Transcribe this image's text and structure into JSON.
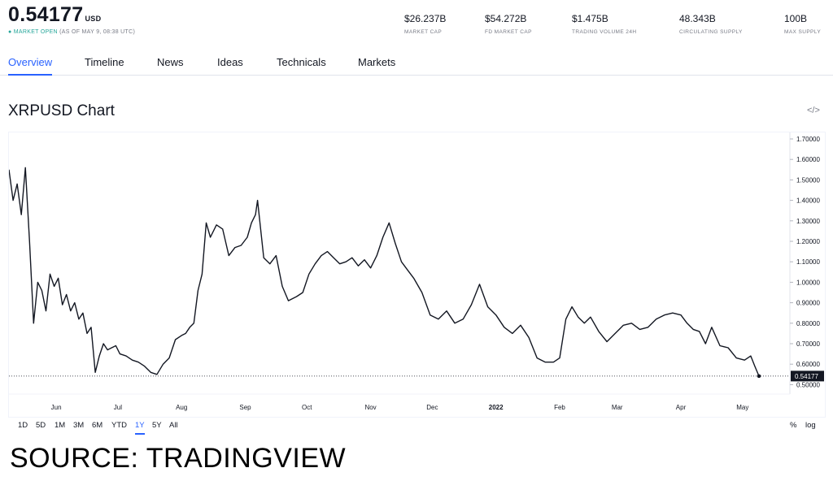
{
  "header": {
    "price": "0.54177",
    "currency": "USD",
    "market_status": "MARKET OPEN",
    "as_of": "(AS OF MAY 9, 08:38 UTC)",
    "stats": [
      {
        "value": "$26.237B",
        "label": "MARKET CAP"
      },
      {
        "value": "$54.272B",
        "label": "FD MARKET CAP"
      },
      {
        "value": "$1.475B",
        "label": "TRADING VOLUME 24H"
      },
      {
        "value": "48.343B",
        "label": "CIRCULATING SUPPLY"
      },
      {
        "value": "100B",
        "label": "MAX SUPPLY"
      }
    ]
  },
  "tabs": [
    "Overview",
    "Timeline",
    "News",
    "Ideas",
    "Technicals",
    "Markets"
  ],
  "active_tab": "Overview",
  "chart_title": "XRPUSD Chart",
  "embed_icon": "</>",
  "ranges": [
    "1D",
    "5D",
    "1M",
    "3M",
    "6M",
    "YTD",
    "1Y",
    "5Y",
    "All"
  ],
  "active_range": "1Y",
  "scale_options": [
    "%",
    "log"
  ],
  "source_caption": "SOURCE: TRADINGVIEW",
  "chart_data": {
    "type": "line",
    "title": "XRPUSD Chart",
    "x_tick_labels": [
      "Jun",
      "Jul",
      "Aug",
      "Sep",
      "Oct",
      "Nov",
      "Dec",
      "2022",
      "Feb",
      "Mar",
      "Apr",
      "May"
    ],
    "y_tick_labels": [
      "1.70000",
      "1.60000",
      "1.50000",
      "1.40000",
      "1.30000",
      "1.20000",
      "1.10000",
      "1.00000",
      "0.90000",
      "0.80000",
      "0.70000",
      "0.60000",
      "0.50000"
    ],
    "ylim": [
      0.45,
      1.75
    ],
    "last_price": 0.54177,
    "last_price_label": "0.54177",
    "x": [
      "2021-05-09",
      "2021-05-11",
      "2021-05-13",
      "2021-05-15",
      "2021-05-17",
      "2021-05-19",
      "2021-05-21",
      "2021-05-23",
      "2021-05-25",
      "2021-05-27",
      "2021-05-29",
      "2021-05-31",
      "2021-06-02",
      "2021-06-04",
      "2021-06-06",
      "2021-06-08",
      "2021-06-10",
      "2021-06-12",
      "2021-06-14",
      "2021-06-16",
      "2021-06-18",
      "2021-06-20",
      "2021-06-22",
      "2021-06-24",
      "2021-06-26",
      "2021-06-28",
      "2021-06-30",
      "2021-07-02",
      "2021-07-05",
      "2021-07-08",
      "2021-07-11",
      "2021-07-14",
      "2021-07-17",
      "2021-07-20",
      "2021-07-23",
      "2021-07-26",
      "2021-07-29",
      "2021-08-01",
      "2021-08-03",
      "2021-08-05",
      "2021-08-07",
      "2021-08-09",
      "2021-08-11",
      "2021-08-13",
      "2021-08-15",
      "2021-08-18",
      "2021-08-21",
      "2021-08-24",
      "2021-08-27",
      "2021-08-30",
      "2021-09-02",
      "2021-09-04",
      "2021-09-06",
      "2021-09-07",
      "2021-09-10",
      "2021-09-13",
      "2021-09-16",
      "2021-09-19",
      "2021-09-22",
      "2021-09-26",
      "2021-09-29",
      "2021-10-02",
      "2021-10-05",
      "2021-10-08",
      "2021-10-11",
      "2021-10-14",
      "2021-10-17",
      "2021-10-20",
      "2021-10-23",
      "2021-10-26",
      "2021-10-29",
      "2021-11-01",
      "2021-11-04",
      "2021-11-07",
      "2021-11-10",
      "2021-11-13",
      "2021-11-16",
      "2021-11-19",
      "2021-11-22",
      "2021-11-26",
      "2021-11-30",
      "2021-12-04",
      "2021-12-08",
      "2021-12-12",
      "2021-12-16",
      "2021-12-20",
      "2021-12-24",
      "2021-12-28",
      "2022-01-01",
      "2022-01-05",
      "2022-01-09",
      "2022-01-13",
      "2022-01-17",
      "2022-01-21",
      "2022-01-25",
      "2022-01-29",
      "2022-02-01",
      "2022-02-04",
      "2022-02-07",
      "2022-02-10",
      "2022-02-13",
      "2022-02-16",
      "2022-02-20",
      "2022-02-24",
      "2022-02-28",
      "2022-03-04",
      "2022-03-08",
      "2022-03-12",
      "2022-03-16",
      "2022-03-20",
      "2022-03-24",
      "2022-03-28",
      "2022-04-01",
      "2022-04-04",
      "2022-04-07",
      "2022-04-10",
      "2022-04-13",
      "2022-04-16",
      "2022-04-20",
      "2022-04-24",
      "2022-04-28",
      "2022-05-02",
      "2022-05-05",
      "2022-05-07",
      "2022-05-09"
    ],
    "series": [
      {
        "values": [
          1.55,
          1.4,
          1.48,
          1.33,
          1.56,
          1.2,
          0.8,
          1.0,
          0.96,
          0.86,
          1.04,
          0.98,
          1.02,
          0.89,
          0.94,
          0.86,
          0.9,
          0.82,
          0.85,
          0.75,
          0.78,
          0.56,
          0.64,
          0.7,
          0.67,
          0.68,
          0.69,
          0.65,
          0.64,
          0.62,
          0.61,
          0.59,
          0.56,
          0.55,
          0.6,
          0.63,
          0.72,
          0.74,
          0.75,
          0.78,
          0.8,
          0.96,
          1.04,
          1.29,
          1.22,
          1.28,
          1.26,
          1.13,
          1.17,
          1.18,
          1.22,
          1.29,
          1.33,
          1.4,
          1.12,
          1.09,
          1.13,
          0.98,
          0.91,
          0.93,
          0.95,
          1.04,
          1.09,
          1.13,
          1.15,
          1.12,
          1.09,
          1.1,
          1.12,
          1.08,
          1.11,
          1.07,
          1.13,
          1.22,
          1.29,
          1.19,
          1.1,
          1.06,
          1.02,
          0.95,
          0.84,
          0.82,
          0.86,
          0.8,
          0.82,
          0.89,
          0.99,
          0.88,
          0.84,
          0.78,
          0.75,
          0.79,
          0.73,
          0.63,
          0.61,
          0.61,
          0.63,
          0.82,
          0.88,
          0.83,
          0.8,
          0.83,
          0.76,
          0.71,
          0.75,
          0.79,
          0.8,
          0.77,
          0.78,
          0.82,
          0.84,
          0.85,
          0.84,
          0.8,
          0.77,
          0.76,
          0.7,
          0.78,
          0.69,
          0.68,
          0.63,
          0.62,
          0.64,
          0.59,
          0.54177
        ]
      }
    ]
  }
}
